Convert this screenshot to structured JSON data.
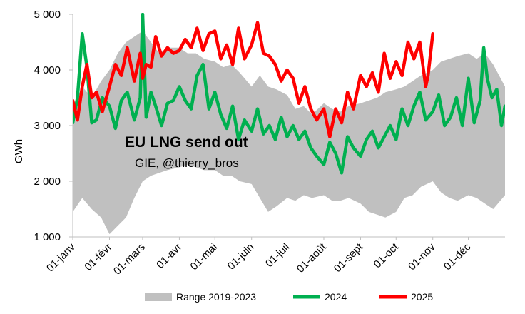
{
  "colors": {
    "range": "#c0c0c0",
    "series_2024": "#00b050",
    "series_2025": "#ff0000",
    "axis": "#bfbfbf"
  },
  "chart_data": {
    "type": "line",
    "title": "EU LNG send out",
    "subtitle": "GIE, @thierry_bros",
    "xlabel": "",
    "ylabel": "GWh",
    "ylim": [
      1000,
      5000
    ],
    "yticks": [
      1000,
      2000,
      3000,
      4000,
      5000
    ],
    "ytick_labels": [
      "1 000",
      "2 000",
      "3 000",
      "4 000",
      "5 000"
    ],
    "xlim_days": [
      0,
      365
    ],
    "xticks": [
      {
        "label": "01-janv",
        "day": 0
      },
      {
        "label": "01-févr",
        "day": 31
      },
      {
        "label": "01-mars",
        "day": 59
      },
      {
        "label": "01-avr",
        "day": 90
      },
      {
        "label": "01-mai",
        "day": 120
      },
      {
        "label": "01-juin",
        "day": 151
      },
      {
        "label": "01-juil",
        "day": 181
      },
      {
        "label": "01-août",
        "day": 212
      },
      {
        "label": "01-sept",
        "day": 243
      },
      {
        "label": "01-oct",
        "day": 273
      },
      {
        "label": "01-nov",
        "day": 304
      },
      {
        "label": "01-déc",
        "day": 334
      }
    ],
    "legend_position": "bottom",
    "range": {
      "name": "Range 2019-2023",
      "x_days": [
        0,
        8,
        16,
        24,
        31,
        38,
        45,
        52,
        59,
        66,
        73,
        80,
        90,
        97,
        104,
        111,
        120,
        127,
        134,
        141,
        151,
        158,
        165,
        172,
        181,
        188,
        195,
        202,
        212,
        219,
        226,
        233,
        243,
        250,
        257,
        264,
        273,
        280,
        287,
        294,
        304,
        311,
        318,
        325,
        334,
        341,
        348,
        355,
        365
      ],
      "upper": [
        3300,
        3700,
        3500,
        3800,
        4000,
        4300,
        4500,
        4600,
        4700,
        4500,
        4300,
        4400,
        4400,
        4300,
        4300,
        4200,
        4150,
        4050,
        4100,
        3950,
        3700,
        3900,
        3700,
        3650,
        3550,
        3300,
        3350,
        3200,
        3400,
        3300,
        3250,
        3350,
        3400,
        3450,
        3500,
        3600,
        3650,
        3700,
        3800,
        3900,
        4000,
        4150,
        4200,
        4250,
        4300,
        4200,
        4300,
        4100,
        3700
      ],
      "lower": [
        1450,
        1700,
        1500,
        1350,
        1050,
        1200,
        1350,
        1700,
        2000,
        2100,
        2150,
        2200,
        2250,
        2300,
        2250,
        2200,
        2200,
        2100,
        2100,
        2000,
        1950,
        1700,
        1450,
        1550,
        1700,
        1650,
        1750,
        1700,
        1750,
        1650,
        1650,
        1700,
        1600,
        1450,
        1400,
        1350,
        1450,
        1700,
        1750,
        1900,
        2000,
        1800,
        1700,
        1650,
        1750,
        1700,
        1600,
        1500,
        1750
      ]
    },
    "series": [
      {
        "name": "2024",
        "x_days": [
          0,
          4,
          8,
          12,
          16,
          20,
          25,
          31,
          36,
          41,
          46,
          52,
          57,
          59,
          62,
          66,
          70,
          75,
          80,
          85,
          90,
          95,
          100,
          105,
          110,
          115,
          120,
          125,
          130,
          135,
          140,
          145,
          151,
          156,
          161,
          166,
          171,
          176,
          181,
          186,
          191,
          196,
          201,
          206,
          212,
          217,
          222,
          227,
          232,
          237,
          243,
          248,
          253,
          258,
          263,
          268,
          273,
          278,
          283,
          288,
          293,
          298,
          304,
          309,
          314,
          319,
          324,
          329,
          334,
          339,
          344,
          347,
          350,
          354,
          358,
          362,
          365
        ],
        "values": [
          3050,
          3500,
          4650,
          4050,
          3050,
          3100,
          3500,
          3350,
          2950,
          3450,
          3600,
          3100,
          3500,
          5000,
          3150,
          3600,
          3350,
          3000,
          3400,
          3450,
          3700,
          3450,
          3300,
          3900,
          4100,
          3300,
          3600,
          3200,
          2950,
          3350,
          2750,
          3100,
          2900,
          3300,
          2850,
          3000,
          2750,
          3150,
          2800,
          3000,
          2750,
          2900,
          2600,
          2450,
          2300,
          2700,
          2500,
          2150,
          2800,
          2600,
          2450,
          2750,
          2900,
          2600,
          2800,
          3000,
          2750,
          3300,
          3000,
          3350,
          3600,
          3100,
          3250,
          3550,
          3000,
          3150,
          3500,
          3000,
          3850,
          3050,
          3450,
          4400,
          3850,
          3500,
          3650,
          3000,
          3350
        ]
      },
      {
        "name": "2025",
        "x_days": [
          0,
          4,
          8,
          12,
          16,
          20,
          25,
          31,
          36,
          41,
          46,
          52,
          57,
          59,
          62,
          66,
          70,
          75,
          80,
          85,
          90,
          95,
          100,
          105,
          110,
          115,
          120,
          125,
          130,
          135,
          140,
          145,
          151,
          156,
          161,
          166,
          171,
          176,
          181,
          186,
          191,
          196,
          201,
          206,
          212,
          217,
          222,
          227,
          232,
          237,
          243,
          248,
          253,
          258,
          263,
          268,
          273,
          278,
          283,
          288,
          293,
          298,
          300,
          304
        ],
        "values": [
          3450,
          3100,
          3700,
          4100,
          3500,
          3600,
          3250,
          3700,
          4100,
          3900,
          4400,
          3800,
          4300,
          3850,
          4100,
          4050,
          4600,
          4250,
          4400,
          4300,
          4350,
          4550,
          4400,
          4750,
          4350,
          4650,
          4700,
          4200,
          4450,
          4100,
          4750,
          4200,
          4450,
          4850,
          4300,
          4250,
          4100,
          3800,
          4000,
          3850,
          3400,
          3700,
          3300,
          3100,
          3300,
          2800,
          3300,
          3050,
          3600,
          3300,
          3900,
          3700,
          3950,
          3600,
          4300,
          3850,
          4150,
          3900,
          4500,
          4200,
          4500,
          3700,
          3900,
          4650
        ]
      }
    ]
  }
}
